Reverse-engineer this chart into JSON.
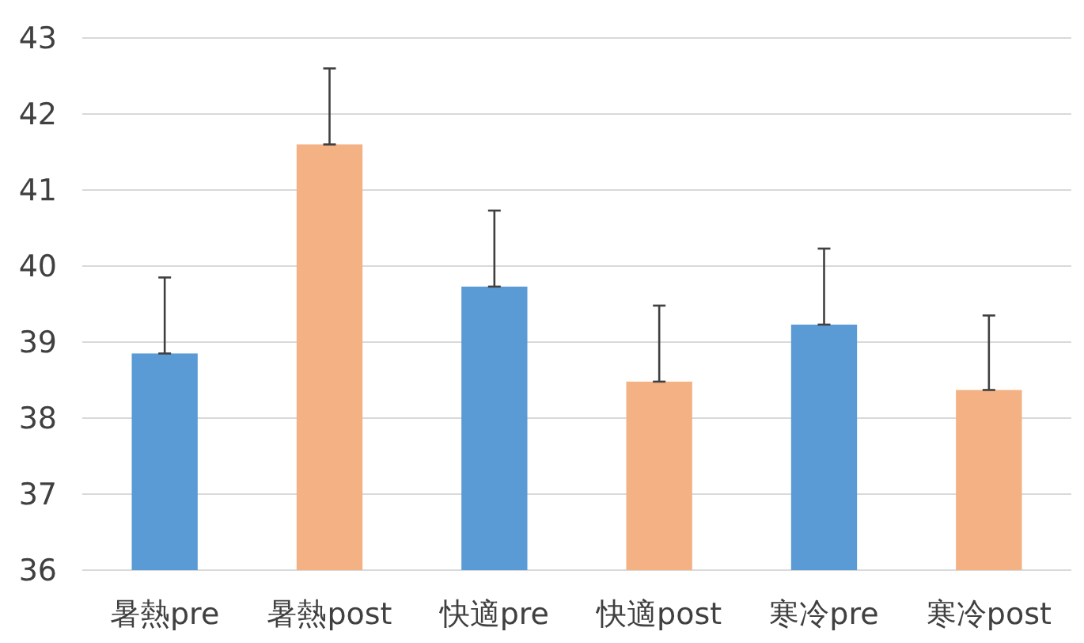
{
  "chart_data": {
    "type": "bar",
    "categories": [
      "暑熱pre",
      "暑熱post",
      "快適pre",
      "快適post",
      "寒冷pre",
      "寒冷post"
    ],
    "values": [
      38.85,
      41.6,
      39.73,
      38.48,
      39.23,
      38.37
    ],
    "colors": [
      "#5b9bd5",
      "#f4b183",
      "#5b9bd5",
      "#f4b183",
      "#5b9bd5",
      "#f4b183"
    ],
    "errors": [
      [
        38.85,
        39.85
      ],
      [
        41.6,
        42.6
      ],
      [
        39.73,
        40.73
      ],
      [
        38.48,
        39.48
      ],
      [
        39.23,
        40.23
      ],
      [
        38.37,
        39.35
      ]
    ],
    "ylim": [
      36,
      43
    ],
    "yticks": [
      36,
      37,
      38,
      39,
      40,
      41,
      42,
      43
    ],
    "grid": "y"
  }
}
